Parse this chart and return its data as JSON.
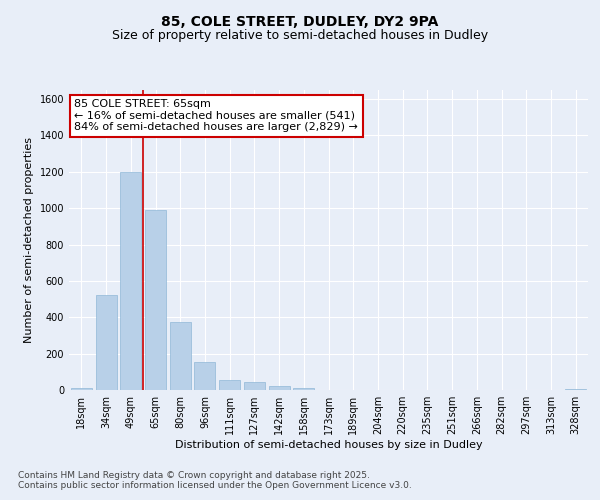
{
  "title_line1": "85, COLE STREET, DUDLEY, DY2 9PA",
  "title_line2": "Size of property relative to semi-detached houses in Dudley",
  "xlabel": "Distribution of semi-detached houses by size in Dudley",
  "ylabel": "Number of semi-detached properties",
  "categories": [
    "18sqm",
    "34sqm",
    "49sqm",
    "65sqm",
    "80sqm",
    "96sqm",
    "111sqm",
    "127sqm",
    "142sqm",
    "158sqm",
    "173sqm",
    "189sqm",
    "204sqm",
    "220sqm",
    "235sqm",
    "251sqm",
    "266sqm",
    "282sqm",
    "297sqm",
    "313sqm",
    "328sqm"
  ],
  "values": [
    10,
    520,
    1200,
    990,
    375,
    155,
    55,
    45,
    20,
    10,
    0,
    0,
    0,
    0,
    0,
    0,
    0,
    0,
    0,
    0,
    5
  ],
  "bar_color": "#b8d0e8",
  "bar_edge_color": "#90b8d8",
  "highlight_bar_index": 3,
  "highlight_line_color": "#cc0000",
  "annotation_text": "85 COLE STREET: 65sqm\n← 16% of semi-detached houses are smaller (541)\n84% of semi-detached houses are larger (2,829) →",
  "annotation_box_color": "#cc0000",
  "annotation_text_color": "#000000",
  "ylim": [
    0,
    1650
  ],
  "yticks": [
    0,
    200,
    400,
    600,
    800,
    1000,
    1200,
    1400,
    1600
  ],
  "background_color": "#e8eef8",
  "plot_background_color": "#e8eef8",
  "footer_line1": "Contains HM Land Registry data © Crown copyright and database right 2025.",
  "footer_line2": "Contains public sector information licensed under the Open Government Licence v3.0.",
  "title_fontsize": 10,
  "subtitle_fontsize": 9,
  "axis_label_fontsize": 8,
  "tick_fontsize": 7,
  "annotation_fontsize": 8,
  "footer_fontsize": 6.5
}
